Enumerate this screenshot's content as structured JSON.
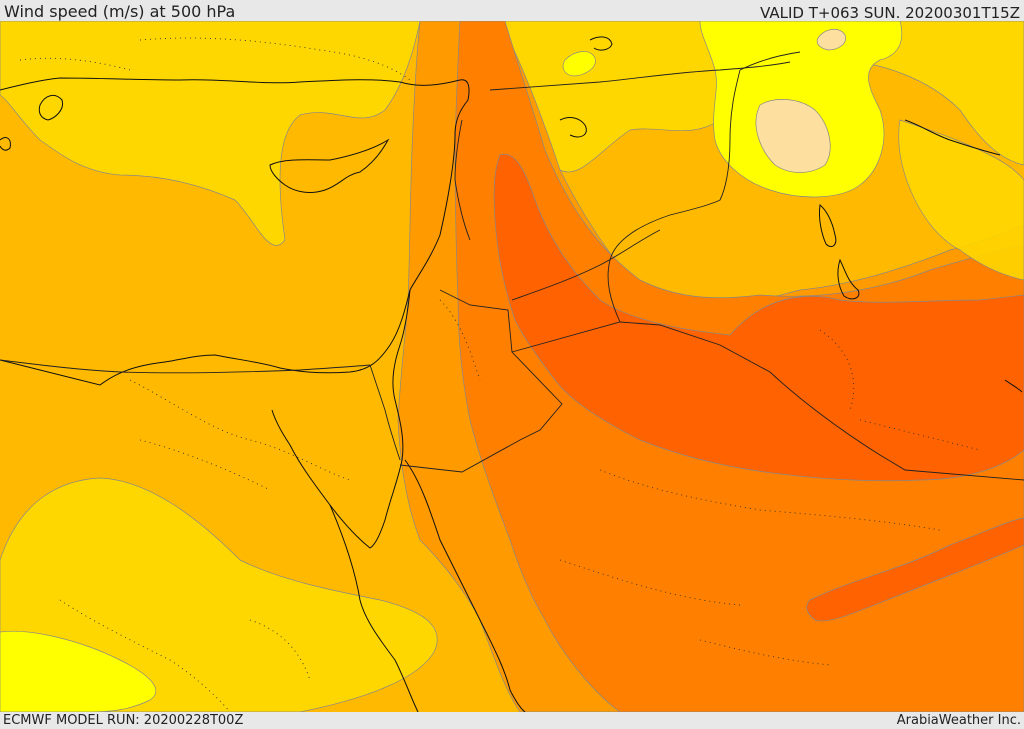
{
  "header": {
    "title": "Wind speed (m/s) at 500 hPa",
    "valid_time": "VALID T+063 SUN. 20200301T15Z"
  },
  "footer": {
    "model_run": "ECMWF MODEL RUN: 20200228T00Z",
    "credit": "ArabiaWeather Inc."
  },
  "colors": {
    "band_lightest": "#fddfa0",
    "band_yellow": "#ffff00",
    "band_gold": "#ffd700",
    "band_amber": "#ffb900",
    "band_orange": "#ff9a00",
    "band_dark_orange": "#ff7f00",
    "band_red_orange": "#ff6200"
  }
}
